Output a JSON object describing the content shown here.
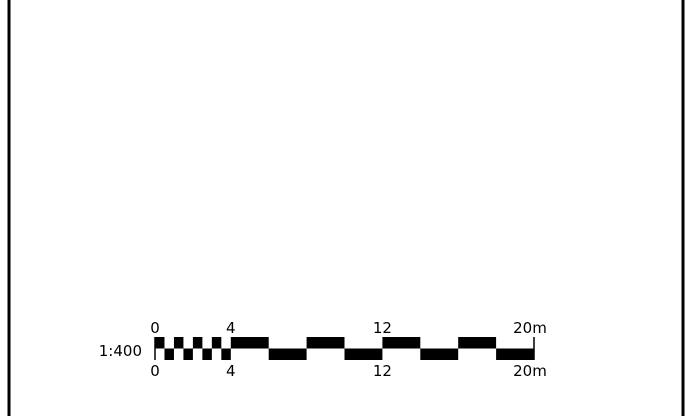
{
  "scale_bar": {
    "ratio_label": "1:400",
    "unit": "m",
    "checker_segments": 8,
    "major_ticks": [
      {
        "value": 0,
        "top_label": "0",
        "bottom_label": "0"
      },
      {
        "value": 4,
        "top_label": "4",
        "bottom_label": "4"
      },
      {
        "value": 12,
        "top_label": "12",
        "bottom_label": "12"
      },
      {
        "value": 20,
        "top_label": "20m",
        "bottom_label": "20m"
      }
    ],
    "max_value": 20,
    "colors": {
      "ink": "#000000",
      "paper": "#ffffff"
    }
  }
}
